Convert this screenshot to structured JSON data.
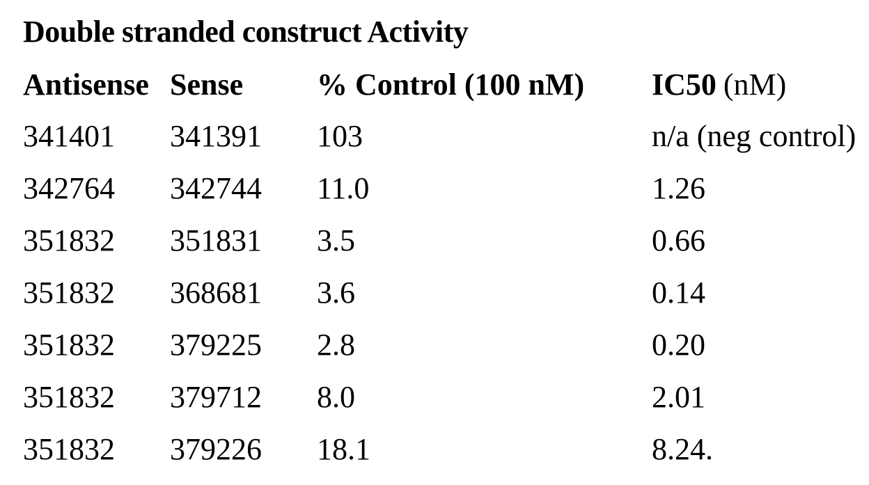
{
  "page": {
    "title": "Double stranded construct Activity",
    "colors": {
      "text": "#000000",
      "background": "#ffffff"
    },
    "table": {
      "headers": {
        "antisense": "Antisense",
        "sense": "Sense",
        "pct_control": "% Control (100 nM)",
        "ic50_label": "IC50",
        "ic50_unit": "(nM)"
      },
      "rows": [
        {
          "antisense": "341401",
          "sense": "341391",
          "pct_control": "103",
          "ic50": "n/a (neg control)"
        },
        {
          "antisense": "342764",
          "sense": "342744",
          "pct_control": "11.0",
          "ic50": "1.26"
        },
        {
          "antisense": "351832",
          "sense": "351831",
          "pct_control": "3.5",
          "ic50": "0.66"
        },
        {
          "antisense": "351832",
          "sense": "368681",
          "pct_control": "3.6",
          "ic50": "0.14"
        },
        {
          "antisense": "351832",
          "sense": "379225",
          "pct_control": "2.8",
          "ic50": "0.20"
        },
        {
          "antisense": "351832",
          "sense": "379712",
          "pct_control": "8.0",
          "ic50": "2.01"
        },
        {
          "antisense": "351832",
          "sense": "379226",
          "pct_control": "18.1",
          "ic50": "8.24."
        }
      ]
    }
  }
}
